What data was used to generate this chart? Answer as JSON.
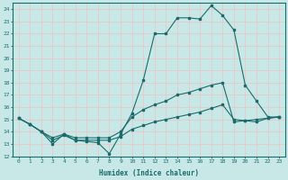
{
  "xlabel": "Humidex (Indice chaleur)",
  "background_color": "#c8e8e8",
  "grid_color": "#e8c8c8",
  "line_color": "#1a6b6b",
  "xlim": [
    -0.5,
    23.5
  ],
  "ylim": [
    12,
    24.5
  ],
  "yticks": [
    12,
    13,
    14,
    15,
    16,
    17,
    18,
    19,
    20,
    21,
    22,
    23,
    24
  ],
  "xticks": [
    0,
    1,
    2,
    3,
    4,
    5,
    6,
    7,
    8,
    9,
    10,
    11,
    12,
    13,
    14,
    15,
    16,
    17,
    18,
    19,
    20,
    21,
    22,
    23
  ],
  "line1_x": [
    0,
    1,
    2,
    3,
    4,
    5,
    6,
    7,
    8,
    9,
    10,
    11,
    12,
    13,
    14,
    15,
    16,
    17,
    18,
    19,
    20,
    21,
    22,
    23
  ],
  "line1_y": [
    15.1,
    14.6,
    14.0,
    13.0,
    13.8,
    13.3,
    13.2,
    13.1,
    12.2,
    13.8,
    15.5,
    18.2,
    22.0,
    22.0,
    23.3,
    23.3,
    23.2,
    24.3,
    23.5,
    22.3,
    17.8,
    16.5,
    15.2,
    15.2
  ],
  "line2_x": [
    0,
    1,
    2,
    3,
    4,
    5,
    6,
    7,
    8,
    9,
    10,
    11,
    12,
    13,
    14,
    15,
    16,
    17,
    18,
    19,
    20,
    21,
    22,
    23
  ],
  "line2_y": [
    15.1,
    14.6,
    14.0,
    13.5,
    13.8,
    13.5,
    13.5,
    13.5,
    13.5,
    14.0,
    15.2,
    15.8,
    16.2,
    16.5,
    17.0,
    17.2,
    17.5,
    17.8,
    18.0,
    14.8,
    14.9,
    15.0,
    15.1,
    15.2
  ],
  "line3_x": [
    0,
    1,
    2,
    3,
    4,
    5,
    6,
    7,
    8,
    9,
    10,
    11,
    12,
    13,
    14,
    15,
    16,
    17,
    18,
    19,
    20,
    21,
    22,
    23
  ],
  "line3_y": [
    15.1,
    14.6,
    14.0,
    13.3,
    13.7,
    13.3,
    13.3,
    13.3,
    13.3,
    13.6,
    14.2,
    14.5,
    14.8,
    15.0,
    15.2,
    15.4,
    15.6,
    15.9,
    16.2,
    15.0,
    14.9,
    14.8,
    15.1,
    15.2
  ],
  "line4_x": [
    0,
    23
  ],
  "line4_y": [
    15.1,
    15.2
  ]
}
